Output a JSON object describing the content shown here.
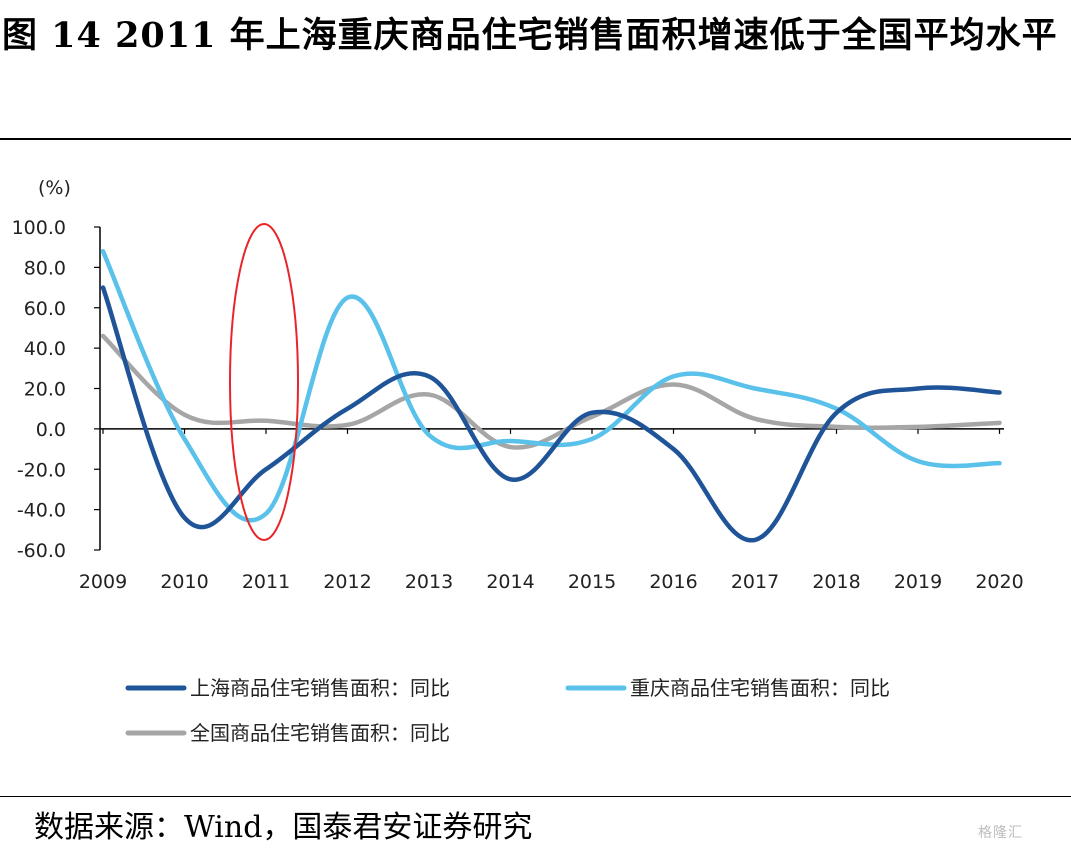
{
  "title": "图 14 2011 年上海重庆商品住宅销售面积增速低于全国平均水平",
  "source": "数据来源：Wind，国泰君安证券研究",
  "watermark": "格隆汇",
  "chart_data": {
    "type": "line",
    "title": "",
    "xlabel": "",
    "ylabel": "(%)",
    "categories": [
      "2009",
      "2010",
      "2011",
      "2012",
      "2013",
      "2014",
      "2015",
      "2016",
      "2017",
      "2018",
      "2019",
      "2020"
    ],
    "y_ticks": [
      "100.0",
      "80.0",
      "60.0",
      "40.0",
      "20.0",
      "0.0",
      "-20.0",
      "-40.0",
      "-60.0"
    ],
    "ylim": [
      -60,
      100
    ],
    "grid": false,
    "legend_position": "bottom",
    "highlight": {
      "shape": "ellipse",
      "color": "#e8262a",
      "category": "2011"
    },
    "series": [
      {
        "name": "上海商品住宅销售面积：同比",
        "color": "#1f5499",
        "values": [
          70,
          -44,
          -20,
          10,
          26,
          -25,
          8,
          -10,
          -55,
          8,
          20,
          18
        ]
      },
      {
        "name": "重庆商品住宅销售面积：同比",
        "color": "#59c1ea",
        "values": [
          88,
          -5,
          -42,
          65,
          -3,
          -6,
          -5,
          26,
          20,
          10,
          -16,
          -17
        ]
      },
      {
        "name": "全国商品住宅销售面积：同比",
        "color": "#a6a6a6",
        "values": [
          46,
          7,
          4,
          2,
          17,
          -9,
          6,
          22,
          5,
          1,
          1,
          3
        ]
      }
    ]
  }
}
